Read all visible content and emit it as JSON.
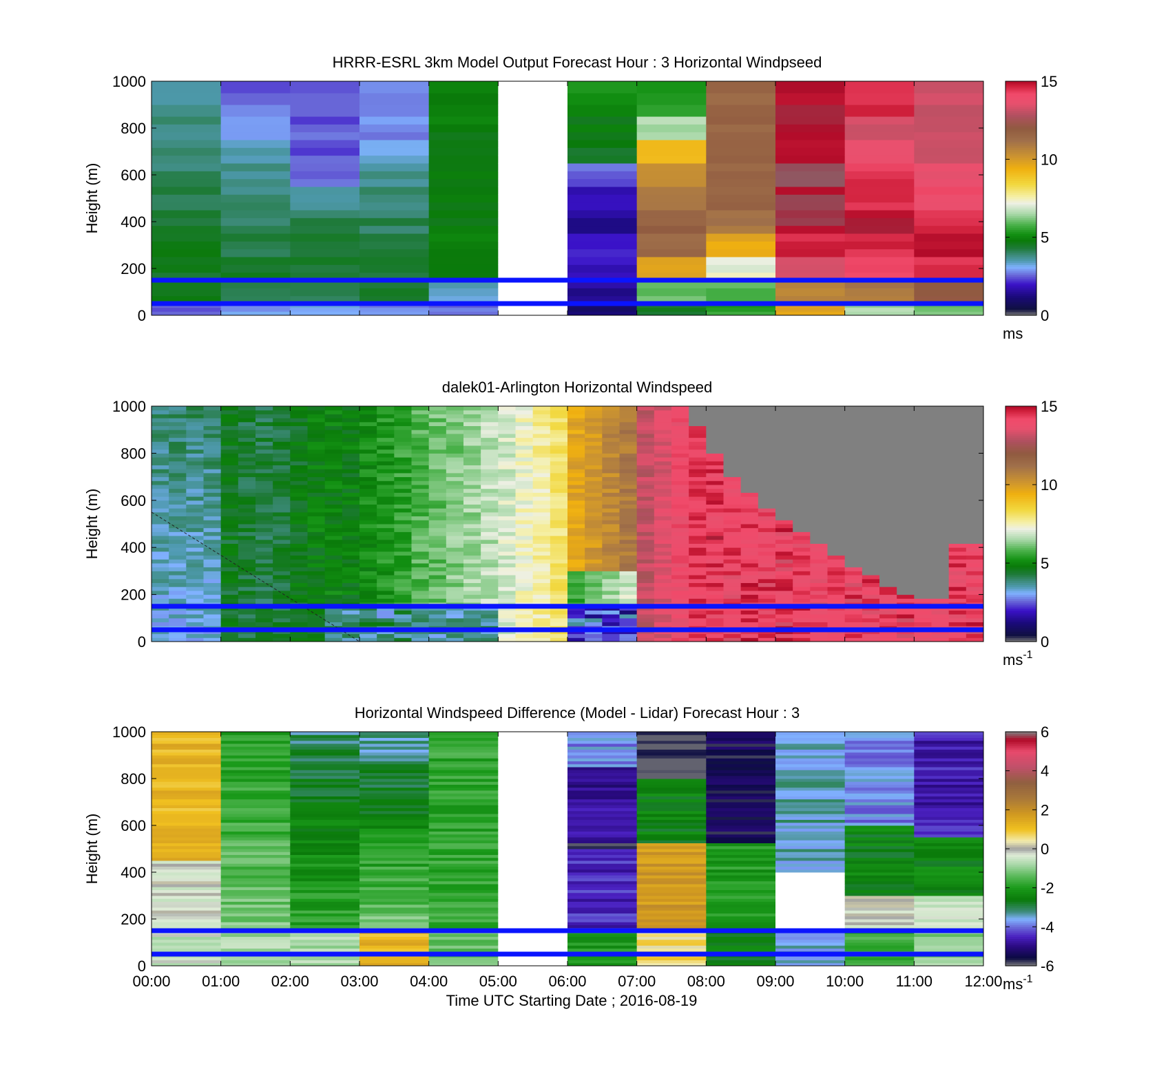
{
  "panels": [
    {
      "id": "model",
      "title": "HRRR-ESRL 3km Model Output   Forecast Hour : 3 Horizontal Windpseed",
      "ylabel": "Height (m)",
      "colorbar_unit": "ms",
      "colorbar_sup": ""
    },
    {
      "id": "lidar",
      "title": "dalek01-Arlington  Horizontal Windspeed",
      "ylabel": "Height (m)",
      "colorbar_unit": "ms",
      "colorbar_sup": "-1"
    },
    {
      "id": "difference",
      "title": "Horizontal Windspeed Difference (Model - Lidar) Forecast Hour : 3",
      "ylabel": "Height (m)",
      "colorbar_unit": "ms",
      "colorbar_sup": "-1"
    }
  ],
  "xlabel": "Time UTC  Starting Date ; 2016-08-19",
  "colors": {
    "blue_lines": "#0a14ff",
    "missing": "#ffffff",
    "gray": "#808080"
  },
  "chart_data": [
    {
      "type": "heatmap",
      "title": "HRRR-ESRL 3km Model Output   Forecast Hour : 3 Horizontal Windpseed",
      "ylabel": "Height (m)",
      "xlabel": "",
      "x_hours": [
        0,
        12
      ],
      "ylim": [
        0,
        1000
      ],
      "yticks": [
        "0",
        "200",
        "400",
        "600",
        "800",
        "1000"
      ],
      "colorbar": {
        "range": [
          0,
          15
        ],
        "ticks": [
          "0",
          "5",
          "10",
          "15"
        ],
        "unit": "ms"
      },
      "reference_lines_m": [
        150,
        50
      ],
      "missing_hours": [
        [
          5,
          6
        ]
      ],
      "columns_hourly_windspeed_ms_by_height_band": {
        "bands_m": [
          [
            0,
            50
          ],
          [
            50,
            150
          ],
          [
            150,
            250
          ],
          [
            250,
            350
          ],
          [
            350,
            450
          ],
          [
            450,
            550
          ],
          [
            550,
            650
          ],
          [
            650,
            750
          ],
          [
            750,
            850
          ],
          [
            850,
            1000
          ]
        ],
        "values": [
          [
            2.5,
            4.5,
            4.5,
            4.6,
            4.4,
            4.2,
            4.0,
            3.9,
            3.8,
            3.6
          ],
          [
            3.0,
            4.2,
            4.4,
            4.2,
            4.0,
            3.9,
            3.8,
            3.5,
            3.0,
            2.6
          ],
          [
            3.2,
            4.3,
            4.4,
            4.3,
            4.2,
            3.6,
            2.6,
            2.4,
            2.5,
            2.5
          ],
          [
            2.8,
            4.3,
            4.4,
            4.2,
            4.1,
            3.9,
            3.7,
            3.2,
            2.9,
            2.6
          ],
          [
            2.6,
            3.5,
            4.7,
            4.8,
            4.8,
            4.8,
            4.8,
            4.8,
            4.8,
            4.8
          ],
          [
            null,
            null,
            null,
            null,
            null,
            null,
            null,
            null,
            null,
            null
          ],
          [
            1.0,
            1.5,
            2.0,
            2.2,
            1.5,
            1.8,
            2.5,
            4.6,
            4.7,
            5.1
          ],
          [
            4.5,
            6.0,
            9.7,
            11.5,
            11.8,
            11.0,
            10.3,
            9.2,
            6.5,
            5.3
          ],
          [
            5.5,
            5.8,
            7.2,
            9.6,
            11.0,
            11.5,
            11.5,
            11.6,
            11.6,
            11.6
          ],
          [
            9.7,
            10.5,
            13.5,
            14.6,
            15.0,
            15.1,
            15.1,
            15.1,
            15.1,
            15.1
          ],
          [
            6.5,
            11.0,
            14.2,
            14.6,
            15.0,
            14.6,
            14.5,
            13.5,
            13.3,
            14.5
          ],
          [
            6.0,
            12.0,
            14.5,
            15.1,
            14.5,
            14.0,
            13.5,
            13.0,
            13.0,
            13.2
          ]
        ]
      }
    },
    {
      "type": "heatmap",
      "title": "dalek01-Arlington  Horizontal Windspeed",
      "ylabel": "Height (m)",
      "xlabel": "",
      "x_hours": [
        0,
        12
      ],
      "ylim": [
        0,
        1000
      ],
      "yticks": [
        "0",
        "200",
        "400",
        "600",
        "800",
        "1000"
      ],
      "colorbar": {
        "range": [
          0,
          15
        ],
        "ticks": [
          "0",
          "5",
          "10",
          "15"
        ],
        "unit": "ms-1"
      },
      "reference_lines_m": [
        150,
        50
      ],
      "missing_region": "08:00-12:00 above a boundary descending from ~1000 m to ~200 m"
    },
    {
      "type": "heatmap",
      "title": "Horizontal Windspeed Difference (Model - Lidar) Forecast Hour : 3",
      "ylabel": "Height (m)",
      "xlabel": "Time UTC  Starting Date ; 2016-08-19",
      "x_hours": [
        0,
        12
      ],
      "xticks": [
        "00:00",
        "01:00",
        "02:00",
        "03:00",
        "04:00",
        "05:00",
        "06:00",
        "07:00",
        "08:00",
        "09:00",
        "10:00",
        "11:00",
        "12:00"
      ],
      "ylim": [
        0,
        1000
      ],
      "yticks": [
        "0",
        "200",
        "400",
        "600",
        "800",
        "1000"
      ],
      "colorbar": {
        "range": [
          -6,
          6
        ],
        "ticks": [
          "-6",
          "-4",
          "-2",
          "0",
          "2",
          "4",
          "6"
        ],
        "unit": "ms-1"
      },
      "reference_lines_m": [
        150,
        50
      ],
      "missing_hours": [
        [
          5,
          6
        ]
      ]
    }
  ]
}
